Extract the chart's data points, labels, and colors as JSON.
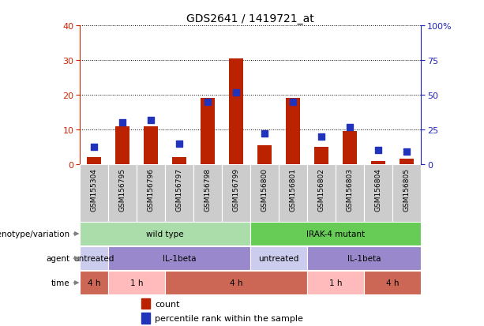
{
  "title": "GDS2641 / 1419721_at",
  "samples": [
    "GSM155304",
    "GSM156795",
    "GSM156796",
    "GSM156797",
    "GSM156798",
    "GSM156799",
    "GSM156800",
    "GSM156801",
    "GSM156802",
    "GSM156803",
    "GSM156804",
    "GSM156805"
  ],
  "counts": [
    2,
    11,
    11,
    2,
    19,
    30.5,
    5.5,
    19,
    5,
    9.5,
    1,
    1.5
  ],
  "percentile_ranks": [
    12.5,
    30,
    32,
    15,
    45,
    52,
    22,
    45,
    20,
    27,
    10,
    9
  ],
  "ylim_left": [
    0,
    40
  ],
  "ylim_right": [
    0,
    100
  ],
  "yticks_left": [
    0,
    10,
    20,
    30,
    40
  ],
  "yticks_right": [
    0,
    25,
    50,
    75,
    100
  ],
  "ytick_labels_right": [
    "0",
    "25",
    "50",
    "75",
    "100%"
  ],
  "bar_color": "#bb2200",
  "dot_color": "#2233bb",
  "bg_color": "#ffffff",
  "axis_color_left": "#cc2200",
  "axis_color_right": "#2222bb",
  "sample_bg": "#cccccc",
  "genotype_row": {
    "label": "genotype/variation",
    "groups": [
      {
        "text": "wild type",
        "start": 0,
        "end": 5,
        "color": "#aaddaa"
      },
      {
        "text": "IRAK-4 mutant",
        "start": 6,
        "end": 11,
        "color": "#66cc55"
      }
    ]
  },
  "agent_row": {
    "label": "agent",
    "groups": [
      {
        "text": "untreated",
        "start": 0,
        "end": 0,
        "color": "#ccccee"
      },
      {
        "text": "IL-1beta",
        "start": 1,
        "end": 5,
        "color": "#9988cc"
      },
      {
        "text": "untreated",
        "start": 6,
        "end": 7,
        "color": "#ccccee"
      },
      {
        "text": "IL-1beta",
        "start": 8,
        "end": 11,
        "color": "#9988cc"
      }
    ]
  },
  "time_row": {
    "label": "time",
    "groups": [
      {
        "text": "4 h",
        "start": 0,
        "end": 0,
        "color": "#cc6655"
      },
      {
        "text": "1 h",
        "start": 1,
        "end": 2,
        "color": "#ffbbbb"
      },
      {
        "text": "4 h",
        "start": 3,
        "end": 7,
        "color": "#cc6655"
      },
      {
        "text": "1 h",
        "start": 8,
        "end": 9,
        "color": "#ffbbbb"
      },
      {
        "text": "4 h",
        "start": 10,
        "end": 11,
        "color": "#cc6655"
      }
    ]
  },
  "legend_count_color": "#bb2200",
  "legend_pct_color": "#2233bb"
}
